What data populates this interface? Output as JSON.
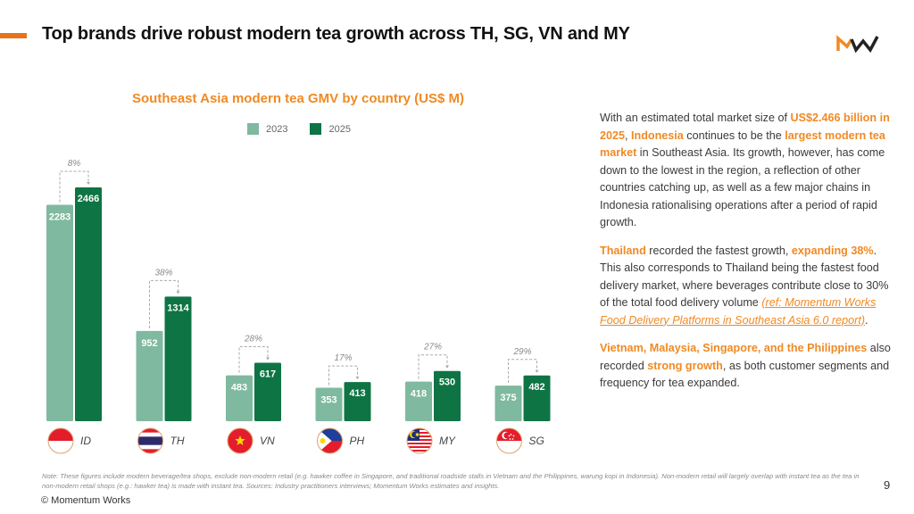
{
  "header": {
    "title": "Top brands drive robust modern tea growth across TH, SG, VN and MY",
    "logo": "MW"
  },
  "colors": {
    "accent": "#f08a24",
    "bar_2023": "#7fb9a0",
    "bar_2025": "#0e7444",
    "growth_label": "#8a8a8a"
  },
  "chart_data": {
    "type": "bar",
    "title": "Southeast Asia modern tea GMV by country (US$ M)",
    "xlabel": "",
    "ylabel": "",
    "legend": "top-center",
    "grid": false,
    "categories": [
      "ID",
      "TH",
      "VN",
      "PH",
      "MY",
      "SG"
    ],
    "flags": [
      "indonesia-flag-icon",
      "thailand-flag-icon",
      "vietnam-flag-icon",
      "philippines-flag-icon",
      "malaysia-flag-icon",
      "singapore-flag-icon"
    ],
    "series": [
      {
        "name": "2023",
        "values": [
          2283,
          952,
          483,
          353,
          418,
          375
        ]
      },
      {
        "name": "2025",
        "values": [
          2466,
          1314,
          617,
          413,
          530,
          482
        ]
      }
    ],
    "growth_labels": [
      "8%",
      "38%",
      "28%",
      "17%",
      "27%",
      "29%"
    ],
    "ylim": [
      0,
      2466
    ]
  },
  "text_panel": {
    "p1": {
      "t1": "With an estimated total market size of ",
      "h1": "US$2.466 billion in 2025",
      "t2": ", ",
      "h2": "Indonesia",
      "t3": " continues to be the ",
      "h3": "largest modern tea market",
      "t4": " in Southeast Asia. Its growth, however, has come down to the lowest in the region, a reflection of other countries catching up, as well as a few major chains in Indonesia rationalising operations after a period of rapid growth."
    },
    "p2": {
      "h1": "Thailand",
      "t1": " recorded the fastest growth, ",
      "h2": "expanding 38%",
      "t2": ". This also corresponds to Thailand being the fastest food delivery market, where beverages contribute close to 30% of the total food delivery volume ",
      "link": "(ref: Momentum Works Food Delivery Platforms in Southeast Asia 6.0 report)",
      "t3": "."
    },
    "p3": {
      "h1": "Vietnam, Malaysia, Singapore, and the Philippines",
      "t1": " also recorded ",
      "h2": "strong growth",
      "t2": ", as both customer segments and frequency for tea expanded."
    }
  },
  "footer": {
    "note": "Note: These figures include modern beverage/tea shops, exclude non-modern retail (e.g. hawker coffee in Singapore, and traditional roadside stalls in Vietnam and the Philippines, warung kopi in Indonesia). Non-modern retail will largely overlap with instant tea as the tea in non-modern retail shops (e.g.: hawker tea) is made with instant tea. Sources: Industry practitioners interviews; Momentum Works estimates and insights.",
    "page_number": "9",
    "copyright": "© Momentum Works"
  }
}
